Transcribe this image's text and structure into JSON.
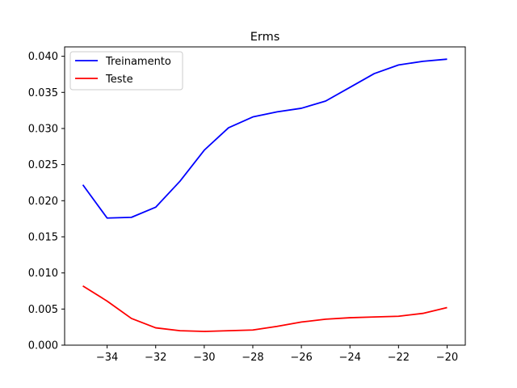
{
  "chart_data": {
    "type": "line",
    "title": "Erms",
    "xlabel": "",
    "ylabel": "",
    "xlim": [
      -35.75,
      -19.25
    ],
    "ylim": [
      0.0,
      0.0413
    ],
    "grid": false,
    "legend_position": "top-left",
    "xticks": [
      -34,
      -32,
      -30,
      -28,
      -26,
      -24,
      -22,
      -20
    ],
    "xtick_labels": [
      "−34",
      "−32",
      "−30",
      "−28",
      "−26",
      "−24",
      "−22",
      "−20"
    ],
    "yticks": [
      0.0,
      0.005,
      0.01,
      0.015,
      0.02,
      0.025,
      0.03,
      0.035,
      0.04
    ],
    "ytick_labels": [
      "0.000",
      "0.005",
      "0.010",
      "0.015",
      "0.020",
      "0.025",
      "0.030",
      "0.035",
      "0.040"
    ],
    "x": [
      -35,
      -34,
      -33,
      -32,
      -31,
      -30,
      -29,
      -28,
      -27,
      -26,
      -25,
      -24,
      -23,
      -22,
      -21,
      -20
    ],
    "series": [
      {
        "name": "Treinamento",
        "color": "#0000ff",
        "values": [
          0.0222,
          0.0176,
          0.0177,
          0.0191,
          0.0227,
          0.027,
          0.0301,
          0.0316,
          0.0323,
          0.0328,
          0.0338,
          0.0357,
          0.0376,
          0.0388,
          0.0393,
          0.0396
        ]
      },
      {
        "name": "Teste",
        "color": "#ff0000",
        "values": [
          0.0082,
          0.0061,
          0.0037,
          0.0024,
          0.002,
          0.0019,
          0.002,
          0.0021,
          0.0026,
          0.0032,
          0.0036,
          0.0038,
          0.0039,
          0.004,
          0.0044,
          0.0052
        ]
      }
    ]
  }
}
